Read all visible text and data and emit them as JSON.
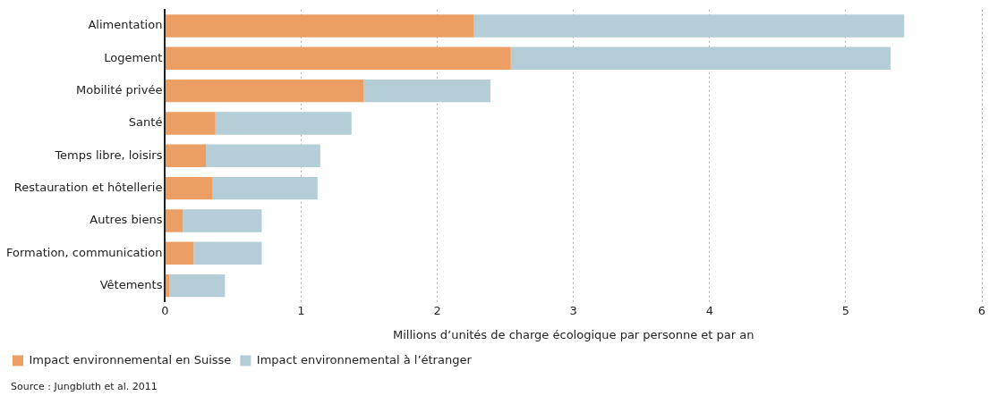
{
  "chart_data": {
    "type": "bar",
    "orientation": "horizontal",
    "stacked": true,
    "categories": [
      "Alimentation",
      "Logement",
      "Mobilité privée",
      "Santé",
      "Temps libre, loisirs",
      "Restauration et hôtellerie",
      "Autres biens",
      "Formation, communication",
      "Vêtements"
    ],
    "series": [
      {
        "name": "Impact environnemental en Suisse",
        "color": "#ec9f64",
        "values": [
          2.27,
          2.54,
          1.46,
          0.37,
          0.3,
          0.35,
          0.13,
          0.21,
          0.03
        ]
      },
      {
        "name": "Impact environnemental à l’étranger",
        "color": "#b5cdd6",
        "values": [
          3.16,
          2.79,
          0.93,
          1.0,
          0.84,
          0.77,
          0.58,
          0.5,
          0.41
        ]
      }
    ],
    "xlim": [
      0,
      6
    ],
    "xticks": [
      0,
      1,
      2,
      3,
      4,
      5,
      6
    ],
    "xlabel": "Millions d’unités de charge écologique par personne et par an",
    "grid": "x",
    "legend": "bottom left",
    "annotations": [
      "Source : Jungbluth et al. 2011"
    ]
  }
}
